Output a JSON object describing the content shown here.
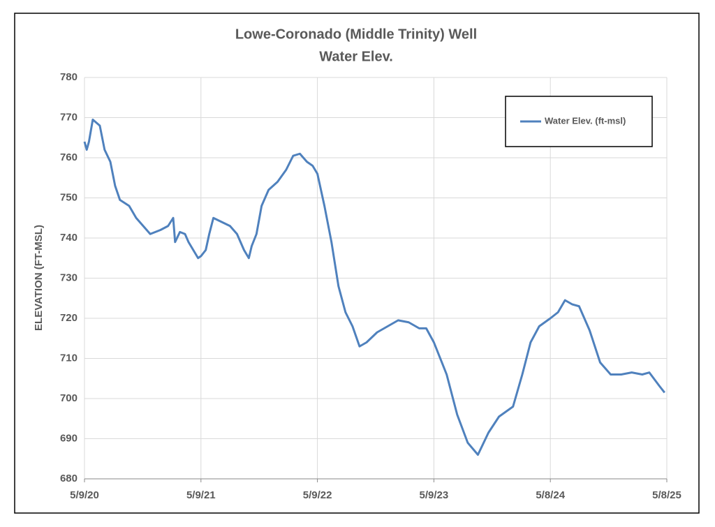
{
  "chart_data": {
    "type": "line",
    "title": "Lowe-Coronado (Middle Trinity) Well",
    "subtitle": "Water Elev.",
    "y_label": "ELEVATION (FT-MSL)",
    "x": [
      "2020-05-09",
      "2020-05-16",
      "2020-05-23",
      "2020-06-04",
      "2020-06-26",
      "2020-07-11",
      "2020-07-29",
      "2020-08-13",
      "2020-08-28",
      "2020-09-26",
      "2020-10-18",
      "2020-11-09",
      "2020-12-01",
      "2021-01-02",
      "2021-01-26",
      "2021-02-11",
      "2021-02-17",
      "2021-03-04",
      "2021-03-20",
      "2021-03-31",
      "2021-04-30",
      "2021-05-09",
      "2021-05-24",
      "2021-06-04",
      "2021-06-17",
      "2021-07-13",
      "2021-08-08",
      "2021-08-30",
      "2021-09-21",
      "2021-10-06",
      "2021-10-15",
      "2021-10-30",
      "2021-11-15",
      "2021-12-07",
      "2022-01-04",
      "2022-01-31",
      "2022-02-22",
      "2022-03-15",
      "2022-04-06",
      "2022-04-24",
      "2022-05-09",
      "2022-05-31",
      "2022-06-22",
      "2022-07-14",
      "2022-08-05",
      "2022-08-27",
      "2022-09-18",
      "2022-10-10",
      "2022-11-12",
      "2022-12-15",
      "2023-01-17",
      "2023-02-19",
      "2023-03-24",
      "2023-04-15",
      "2023-05-09",
      "2023-06-18",
      "2023-07-21",
      "2023-08-23",
      "2023-09-24",
      "2023-10-27",
      "2023-11-29",
      "2024-01-12",
      "2024-02-10",
      "2024-03-07",
      "2024-04-03",
      "2024-05-08",
      "2024-06-01",
      "2024-06-23",
      "2024-07-15",
      "2024-08-06",
      "2024-09-08",
      "2024-10-11",
      "2024-11-13",
      "2024-12-16",
      "2025-01-18",
      "2025-02-20",
      "2025-03-14",
      "2025-04-16",
      "2025-05-01"
    ],
    "series": [
      {
        "name": "Water Elev. (ft-msl)",
        "color": "#4f81bd",
        "values": [
          764,
          762,
          764,
          769.5,
          768,
          762,
          759,
          753,
          749.5,
          748,
          745,
          743,
          741,
          742,
          743,
          745,
          739,
          741.5,
          741,
          739,
          735,
          735.5,
          737,
          741,
          745,
          744,
          743,
          741,
          737,
          735,
          738,
          741,
          748,
          752,
          754,
          757,
          760.5,
          761,
          759,
          758,
          756,
          748,
          739,
          728,
          721.5,
          718,
          713,
          714,
          716.5,
          718,
          719.5,
          719,
          717.5,
          717.5,
          714,
          706,
          696,
          689,
          686,
          691.5,
          695.5,
          698,
          706,
          714,
          718,
          720,
          721.5,
          724.5,
          723.5,
          723,
          717,
          709,
          706,
          706,
          706.5,
          706,
          706.5,
          703,
          701.5
        ]
      }
    ],
    "xlim": [
      "2020-05-09",
      "2025-05-08"
    ],
    "xticks": [
      {
        "value": "2020-05-09",
        "label": "5/9/20"
      },
      {
        "value": "2021-05-09",
        "label": "5/9/21"
      },
      {
        "value": "2022-05-09",
        "label": "5/9/22"
      },
      {
        "value": "2023-05-09",
        "label": "5/9/23"
      },
      {
        "value": "2024-05-08",
        "label": "5/8/24"
      },
      {
        "value": "2025-05-08",
        "label": "5/8/25"
      }
    ],
    "ylim": [
      680,
      780
    ],
    "yticks": [
      680,
      690,
      700,
      710,
      720,
      730,
      740,
      750,
      760,
      770,
      780
    ],
    "grid": true,
    "legend": "top-right"
  }
}
